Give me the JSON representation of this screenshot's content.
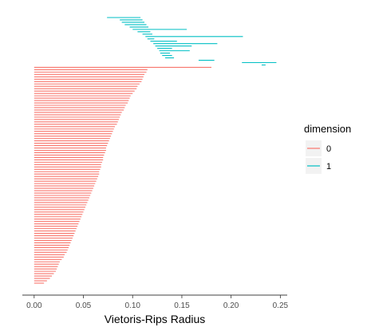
{
  "chart_data": {
    "type": "barcode",
    "xlabel": "Vietoris-Rips Radius",
    "xlim": [
      -0.012,
      0.257
    ],
    "x_ticks": [
      "0.00",
      "0.05",
      "0.10",
      "0.15",
      "0.20",
      "0.25"
    ],
    "x_tick_values": [
      0,
      0.05,
      0.1,
      0.15,
      0.2,
      0.25
    ],
    "grid": false,
    "legend": {
      "title": "dimension",
      "placement": "right",
      "entries": [
        {
          "label": "0",
          "color": "#F8766D"
        },
        {
          "label": "1",
          "color": "#00BFC4"
        }
      ]
    },
    "series": [
      {
        "name": "1",
        "color": "#00BFC4",
        "bars": [
          [
            0.074,
            0.108
          ],
          [
            0.087,
            0.11
          ],
          [
            0.089,
            0.112
          ],
          [
            0.092,
            0.114
          ],
          [
            0.097,
            0.116
          ],
          [
            0.1,
            0.155
          ],
          [
            0.105,
            0.118
          ],
          [
            0.11,
            0.12
          ],
          [
            0.113,
            0.212
          ],
          [
            0.115,
            0.122
          ],
          [
            0.118,
            0.145
          ],
          [
            0.121,
            0.186
          ],
          [
            0.123,
            0.16
          ],
          [
            0.125,
            0.14
          ],
          [
            0.127,
            0.158
          ],
          [
            0.128,
            0.138
          ],
          [
            0.13,
            0.14
          ],
          [
            0.133,
            0.142
          ],
          [
            0.167,
            0.183
          ],
          [
            0.211,
            0.246
          ],
          [
            0.231,
            0.235
          ]
        ]
      },
      {
        "name": "0",
        "color": "#F8766D",
        "bars": [
          [
            0,
            0.18
          ],
          [
            0,
            0.115
          ],
          [
            0,
            0.114
          ],
          [
            0,
            0.112
          ],
          [
            0,
            0.111
          ],
          [
            0,
            0.11
          ],
          [
            0,
            0.109
          ],
          [
            0,
            0.107
          ],
          [
            0,
            0.105
          ],
          [
            0,
            0.104
          ],
          [
            0,
            0.102
          ],
          [
            0,
            0.1
          ],
          [
            0,
            0.098
          ],
          [
            0,
            0.097
          ],
          [
            0,
            0.096
          ],
          [
            0,
            0.095
          ],
          [
            0,
            0.093
          ],
          [
            0,
            0.092
          ],
          [
            0,
            0.091
          ],
          [
            0,
            0.089
          ],
          [
            0,
            0.088
          ],
          [
            0,
            0.087
          ],
          [
            0,
            0.086
          ],
          [
            0,
            0.085
          ],
          [
            0,
            0.084
          ],
          [
            0,
            0.082
          ],
          [
            0,
            0.081
          ],
          [
            0,
            0.08
          ],
          [
            0,
            0.079
          ],
          [
            0,
            0.078
          ],
          [
            0,
            0.077
          ],
          [
            0,
            0.076
          ],
          [
            0,
            0.075
          ],
          [
            0,
            0.074
          ],
          [
            0,
            0.073
          ],
          [
            0,
            0.073
          ],
          [
            0,
            0.072
          ],
          [
            0,
            0.071
          ],
          [
            0,
            0.07
          ],
          [
            0,
            0.07
          ],
          [
            0,
            0.069
          ],
          [
            0,
            0.068
          ],
          [
            0,
            0.068
          ],
          [
            0,
            0.067
          ],
          [
            0,
            0.066
          ],
          [
            0,
            0.066
          ],
          [
            0,
            0.065
          ],
          [
            0,
            0.064
          ],
          [
            0,
            0.063
          ],
          [
            0,
            0.062
          ],
          [
            0,
            0.061
          ],
          [
            0,
            0.06
          ],
          [
            0,
            0.059
          ],
          [
            0,
            0.058
          ],
          [
            0,
            0.057
          ],
          [
            0,
            0.056
          ],
          [
            0,
            0.055
          ],
          [
            0,
            0.054
          ],
          [
            0,
            0.053
          ],
          [
            0,
            0.052
          ],
          [
            0,
            0.051
          ],
          [
            0,
            0.05
          ],
          [
            0,
            0.049
          ],
          [
            0,
            0.048
          ],
          [
            0,
            0.047
          ],
          [
            0,
            0.046
          ],
          [
            0,
            0.045
          ],
          [
            0,
            0.044
          ],
          [
            0,
            0.043
          ],
          [
            0,
            0.042
          ],
          [
            0,
            0.041
          ],
          [
            0,
            0.04
          ],
          [
            0,
            0.039
          ],
          [
            0,
            0.038
          ],
          [
            0,
            0.037
          ],
          [
            0,
            0.036
          ],
          [
            0,
            0.035
          ],
          [
            0,
            0.034
          ],
          [
            0,
            0.033
          ],
          [
            0,
            0.031
          ],
          [
            0,
            0.03
          ],
          [
            0,
            0.028
          ],
          [
            0,
            0.026
          ],
          [
            0,
            0.025
          ],
          [
            0,
            0.024
          ],
          [
            0,
            0.023
          ],
          [
            0,
            0.022
          ],
          [
            0,
            0.02
          ],
          [
            0,
            0.018
          ],
          [
            0,
            0.016
          ],
          [
            0,
            0.013
          ],
          [
            0,
            0.01
          ]
        ]
      }
    ]
  }
}
